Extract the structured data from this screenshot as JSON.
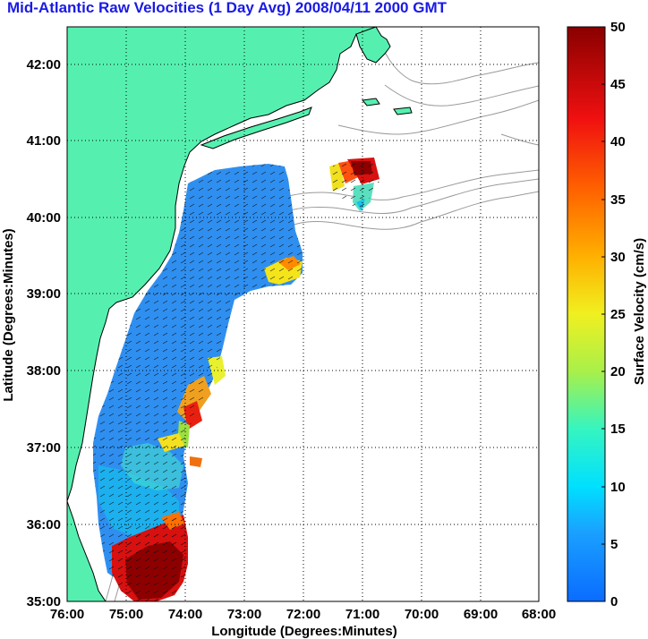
{
  "title": "Mid-Atlantic Raw Velocities (1 Day Avg) 2008/04/11 2000 GMT",
  "x_axis": {
    "label": "Longitude (Degrees:Minutes)",
    "ticks": [
      "76:00",
      "75:00",
      "74:00",
      "73:00",
      "72:00",
      "71:00",
      "70:00",
      "69:00",
      "68:00"
    ]
  },
  "y_axis": {
    "label": "Latitude (Degrees:Minutes)",
    "ticks": [
      "35:00",
      "36:00",
      "37:00",
      "38:00",
      "39:00",
      "40:00",
      "41:00",
      "42:00"
    ]
  },
  "colorbar": {
    "label": "Surface Velocity (cm/s)",
    "ticks": [
      "0",
      "5",
      "10",
      "15",
      "20",
      "25",
      "30",
      "35",
      "40",
      "45",
      "50"
    ],
    "range": [
      0,
      50
    ]
  },
  "colors": {
    "land": "#55f0b0",
    "coast": "#000000",
    "grid": "#000000",
    "bathymetry": "#9a9a9a",
    "title": "#1a1ae6"
  }
}
